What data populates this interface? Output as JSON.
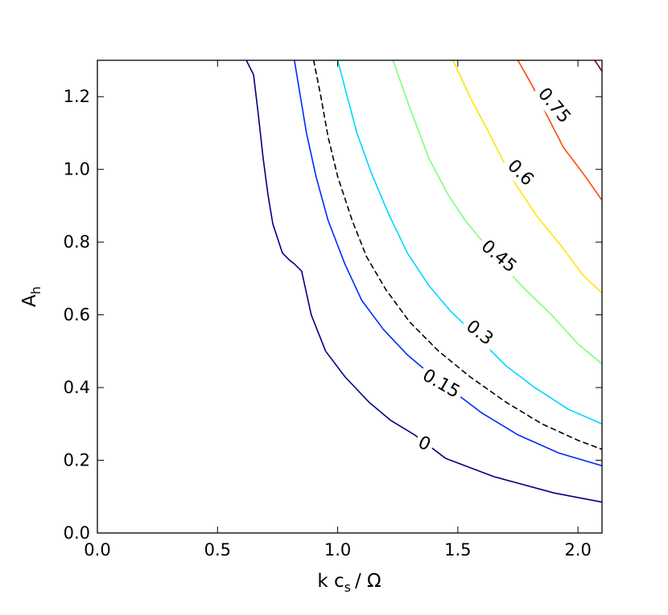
{
  "chart_data": {
    "type": "contour",
    "xlabel": {
      "main": "k c",
      "sub": "s",
      "tail": "/ Ω"
    },
    "ylabel": {
      "main": "A",
      "sub": "h"
    },
    "xlim": [
      0.0,
      2.1
    ],
    "ylim": [
      0.0,
      1.3
    ],
    "xticks": [
      "0.0",
      "0.5",
      "1.0",
      "1.5",
      "2.0"
    ],
    "xtick_values": [
      0.0,
      0.5,
      1.0,
      1.5,
      2.0
    ],
    "yticks": [
      "0.0",
      "0.2",
      "0.4",
      "0.6",
      "0.8",
      "1.0",
      "1.2"
    ],
    "ytick_values": [
      0.0,
      0.2,
      0.4,
      0.6,
      0.8,
      1.0,
      1.2
    ],
    "grid": false,
    "contours": [
      {
        "level": "0",
        "color": "#00007f",
        "dashed": false,
        "points": [
          [
            0.62,
            1.3
          ],
          [
            0.65,
            1.26
          ],
          [
            0.67,
            1.15
          ],
          [
            0.69,
            1.03
          ],
          [
            0.71,
            0.93
          ],
          [
            0.73,
            0.85
          ],
          [
            0.77,
            0.77
          ],
          [
            0.8,
            0.75
          ],
          [
            0.82,
            0.74
          ],
          [
            0.85,
            0.72
          ],
          [
            0.89,
            0.6
          ],
          [
            0.95,
            0.5
          ],
          [
            1.03,
            0.43
          ],
          [
            1.13,
            0.36
          ],
          [
            1.22,
            0.31
          ],
          [
            1.32,
            0.27
          ],
          [
            1.45,
            0.205
          ],
          [
            1.65,
            0.155
          ],
          [
            1.9,
            0.11
          ],
          [
            2.1,
            0.085
          ]
        ],
        "label": {
          "text": "0",
          "x": 1.36,
          "y": 0.245,
          "angle": 25
        }
      },
      {
        "level": "0.15",
        "color": "#0028ff",
        "dashed": false,
        "points": [
          [
            0.82,
            1.3
          ],
          [
            0.84,
            1.22
          ],
          [
            0.87,
            1.1
          ],
          [
            0.91,
            0.98
          ],
          [
            0.96,
            0.86
          ],
          [
            1.03,
            0.74
          ],
          [
            1.1,
            0.64
          ],
          [
            1.19,
            0.56
          ],
          [
            1.29,
            0.49
          ],
          [
            1.38,
            0.44
          ],
          [
            1.5,
            0.38
          ],
          [
            1.6,
            0.33
          ],
          [
            1.75,
            0.27
          ],
          [
            1.92,
            0.22
          ],
          [
            2.1,
            0.185
          ]
        ],
        "label": {
          "text": "0.15",
          "x": 1.43,
          "y": 0.41,
          "angle": 30
        }
      },
      {
        "level": "",
        "color": "#000000",
        "dashed": true,
        "points": [
          [
            0.9,
            1.3
          ],
          [
            0.93,
            1.2
          ],
          [
            0.96,
            1.09
          ],
          [
            1.0,
            0.98
          ],
          [
            1.06,
            0.86
          ],
          [
            1.12,
            0.76
          ],
          [
            1.2,
            0.67
          ],
          [
            1.3,
            0.58
          ],
          [
            1.42,
            0.5
          ],
          [
            1.55,
            0.43
          ],
          [
            1.7,
            0.36
          ],
          [
            1.85,
            0.3
          ],
          [
            2.0,
            0.255
          ],
          [
            2.1,
            0.23
          ]
        ]
      },
      {
        "level": "0.3",
        "color": "#00d4ff",
        "dashed": false,
        "points": [
          [
            1.0,
            1.3
          ],
          [
            1.04,
            1.2
          ],
          [
            1.08,
            1.1
          ],
          [
            1.14,
            0.99
          ],
          [
            1.21,
            0.88
          ],
          [
            1.29,
            0.77
          ],
          [
            1.38,
            0.68
          ],
          [
            1.47,
            0.61
          ],
          [
            1.58,
            0.54
          ],
          [
            1.7,
            0.46
          ],
          [
            1.82,
            0.4
          ],
          [
            1.96,
            0.34
          ],
          [
            2.1,
            0.3
          ]
        ],
        "label": {
          "text": "0.3",
          "x": 1.59,
          "y": 0.55,
          "angle": 38
        }
      },
      {
        "level": "0.45",
        "color": "#7cff79",
        "dashed": false,
        "points": [
          [
            1.23,
            1.3
          ],
          [
            1.3,
            1.17
          ],
          [
            1.38,
            1.03
          ],
          [
            1.46,
            0.93
          ],
          [
            1.53,
            0.86
          ],
          [
            1.68,
            0.74
          ],
          [
            1.78,
            0.67
          ],
          [
            1.89,
            0.6
          ],
          [
            2.0,
            0.52
          ],
          [
            2.1,
            0.465
          ]
        ],
        "label": {
          "text": "0.45",
          "x": 1.67,
          "y": 0.76,
          "angle": 40
        }
      },
      {
        "level": "0.6",
        "color": "#ffe500",
        "dashed": false,
        "points": [
          [
            1.48,
            1.3
          ],
          [
            1.55,
            1.2
          ],
          [
            1.63,
            1.1
          ],
          [
            1.73,
            0.97
          ],
          [
            1.83,
            0.87
          ],
          [
            1.93,
            0.79
          ],
          [
            2.02,
            0.71
          ],
          [
            2.1,
            0.66
          ]
        ],
        "label": {
          "text": "0.6",
          "x": 1.76,
          "y": 0.99,
          "angle": 45
        }
      },
      {
        "level": "0.75",
        "color": "#ff4800",
        "dashed": false,
        "points": [
          [
            1.75,
            1.3
          ],
          [
            1.81,
            1.23
          ],
          [
            1.87,
            1.15
          ],
          [
            1.94,
            1.06
          ],
          [
            2.02,
            0.99
          ],
          [
            2.1,
            0.915
          ]
        ],
        "label": {
          "text": "0.75",
          "x": 1.9,
          "y": 1.175,
          "angle": 50
        }
      },
      {
        "level": "",
        "color": "#7f0000",
        "dashed": false,
        "points": [
          [
            2.07,
            1.3
          ],
          [
            2.1,
            1.27
          ]
        ]
      }
    ]
  }
}
